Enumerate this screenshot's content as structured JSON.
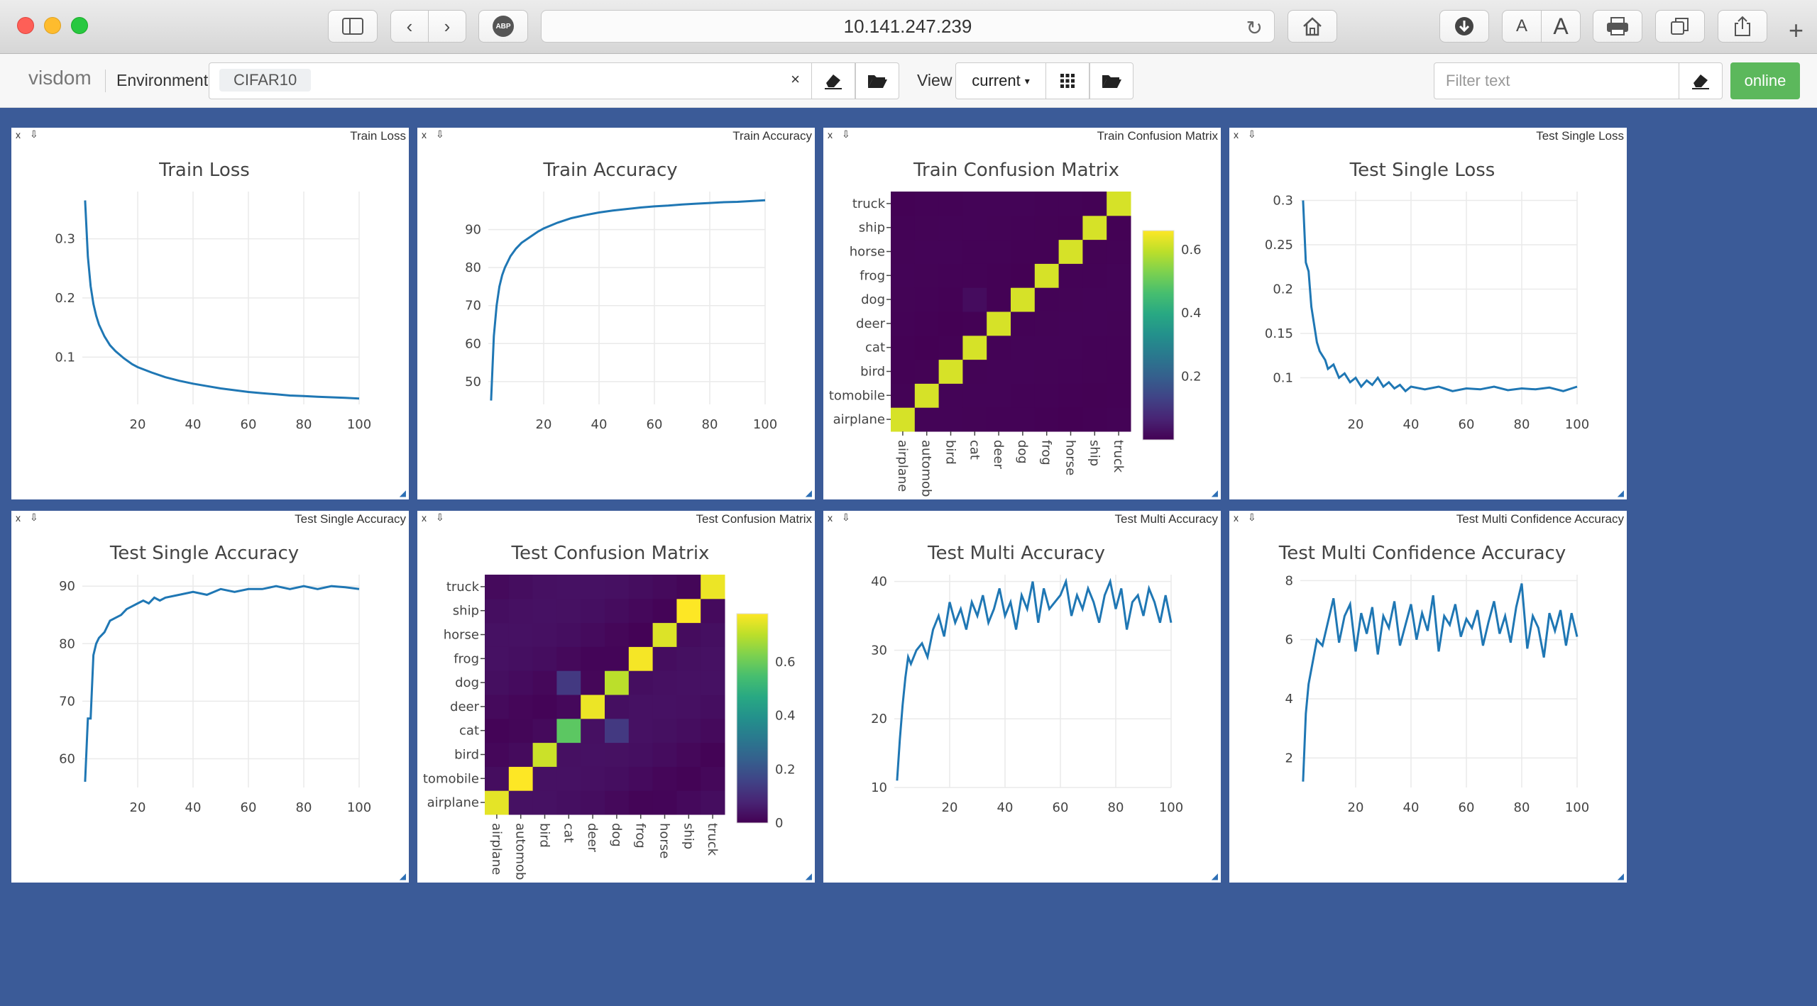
{
  "browser": {
    "url": "10.141.247.239",
    "abp_label": "ABP",
    "font_small": "A",
    "font_large": "A"
  },
  "toolbar": {
    "brand": "visdom",
    "env_label": "Environment",
    "env_value": "CIFAR10",
    "env_clear": "×",
    "view_label": "View",
    "view_value": "current",
    "filter_placeholder": "Filter text",
    "status": "online"
  },
  "colors": {
    "line": "#1f77b4",
    "background": "#3b5b98",
    "online": "#5cb85c"
  },
  "classes": [
    "airplane",
    "automobile",
    "bird",
    "cat",
    "deer",
    "dog",
    "frog",
    "horse",
    "ship",
    "truck"
  ],
  "panes": [
    {
      "id": "train-loss",
      "window": "Train Loss",
      "chart_data": {
        "type": "line",
        "title": "Train Loss",
        "x": [
          1,
          2,
          3,
          4,
          5,
          6,
          8,
          10,
          12,
          15,
          18,
          20,
          25,
          30,
          35,
          40,
          45,
          50,
          55,
          60,
          65,
          70,
          75,
          80,
          85,
          90,
          95,
          100
        ],
        "y": [
          0.365,
          0.27,
          0.22,
          0.19,
          0.17,
          0.155,
          0.135,
          0.12,
          0.11,
          0.098,
          0.088,
          0.083,
          0.074,
          0.066,
          0.06,
          0.055,
          0.051,
          0.047,
          0.044,
          0.041,
          0.039,
          0.037,
          0.035,
          0.034,
          0.033,
          0.032,
          0.031,
          0.03
        ],
        "xlim": [
          0,
          100
        ],
        "ylim": [
          0.02,
          0.38
        ],
        "xticks": [
          20,
          40,
          60,
          80,
          100
        ],
        "yticks": [
          0.1,
          0.2,
          0.3
        ]
      }
    },
    {
      "id": "train-accuracy",
      "window": "Train Accuracy",
      "chart_data": {
        "type": "line",
        "title": "Train Accuracy",
        "x": [
          1,
          2,
          3,
          4,
          5,
          6,
          8,
          10,
          12,
          15,
          18,
          20,
          25,
          30,
          35,
          40,
          45,
          50,
          55,
          60,
          65,
          70,
          75,
          80,
          85,
          90,
          95,
          100
        ],
        "y": [
          45,
          62,
          70,
          75,
          78,
          80,
          83,
          85,
          86.5,
          88,
          89.5,
          90.3,
          91.8,
          93,
          93.8,
          94.5,
          95,
          95.4,
          95.8,
          96.1,
          96.3,
          96.6,
          96.8,
          97,
          97.2,
          97.3,
          97.5,
          97.7
        ],
        "xlim": [
          0,
          100
        ],
        "ylim": [
          44,
          100
        ],
        "xticks": [
          20,
          40,
          60,
          80,
          100
        ],
        "yticks": [
          50,
          60,
          70,
          80,
          90
        ]
      }
    },
    {
      "id": "train-confusion",
      "window": "Train Confusion Matrix",
      "chart_data": {
        "type": "heatmap",
        "title": "Train Confusion Matrix",
        "xcategories": [
          "airplane",
          "automobile",
          "bird",
          "cat",
          "deer",
          "dog",
          "frog",
          "horse",
          "ship",
          "truck"
        ],
        "ycategories": [
          "airplane",
          "tomobile",
          "bird",
          "cat",
          "deer",
          "dog",
          "frog",
          "horse",
          "ship",
          "truck"
        ],
        "diagonal": 0.62,
        "offdiag": 0.003,
        "colorbar_ticks": [
          0.2,
          0.4,
          0.6
        ],
        "zmax": 0.66
      }
    },
    {
      "id": "test-single-loss",
      "window": "Test Single Loss",
      "chart_data": {
        "type": "line",
        "title": "Test Single Loss",
        "x": [
          1,
          2,
          3,
          4,
          5,
          6,
          7,
          8,
          9,
          10,
          12,
          14,
          16,
          18,
          20,
          22,
          24,
          26,
          28,
          30,
          32,
          34,
          36,
          38,
          40,
          45,
          50,
          55,
          60,
          65,
          70,
          75,
          80,
          85,
          90,
          95,
          100
        ],
        "y": [
          0.3,
          0.23,
          0.22,
          0.18,
          0.16,
          0.14,
          0.13,
          0.125,
          0.12,
          0.11,
          0.115,
          0.1,
          0.105,
          0.095,
          0.1,
          0.09,
          0.097,
          0.092,
          0.1,
          0.09,
          0.095,
          0.088,
          0.092,
          0.085,
          0.09,
          0.087,
          0.09,
          0.085,
          0.088,
          0.087,
          0.09,
          0.086,
          0.088,
          0.087,
          0.089,
          0.085,
          0.09
        ],
        "xlim": [
          0,
          100
        ],
        "ylim": [
          0.07,
          0.31
        ],
        "xticks": [
          20,
          40,
          60,
          80,
          100
        ],
        "yticks": [
          0.1,
          0.15,
          0.2,
          0.25,
          0.3
        ]
      }
    },
    {
      "id": "test-single-accuracy",
      "window": "Test Single Accuracy",
      "chart_data": {
        "type": "line",
        "title": "Test Single Accuracy",
        "x": [
          1,
          2,
          3,
          4,
          5,
          6,
          8,
          10,
          12,
          14,
          16,
          18,
          20,
          22,
          24,
          26,
          28,
          30,
          35,
          40,
          45,
          50,
          55,
          60,
          65,
          70,
          75,
          80,
          85,
          90,
          95,
          100
        ],
        "y": [
          56,
          67,
          67,
          78,
          80,
          81,
          82,
          84,
          84.5,
          85,
          86,
          86.5,
          87,
          87.5,
          87,
          88,
          87.5,
          88,
          88.5,
          89,
          88.5,
          89.5,
          89,
          89.5,
          89.5,
          90,
          89.5,
          90,
          89.5,
          90,
          89.8,
          89.5
        ],
        "xlim": [
          0,
          100
        ],
        "ylim": [
          55,
          92
        ],
        "xticks": [
          20,
          40,
          60,
          80,
          100
        ],
        "yticks": [
          60,
          70,
          80,
          90
        ]
      }
    },
    {
      "id": "test-confusion",
      "window": "Test Confusion Matrix",
      "chart_data": {
        "type": "heatmap",
        "title": "Test Confusion Matrix",
        "xcategories": [
          "airplane",
          "automobile",
          "bird",
          "cat",
          "deer",
          "dog",
          "frog",
          "horse",
          "ship",
          "truck"
        ],
        "ycategories": [
          "airplane",
          "tomobile",
          "bird",
          "cat",
          "deer",
          "dog",
          "frog",
          "horse",
          "ship",
          "truck"
        ],
        "diagonal": [
          0.75,
          0.78,
          0.72,
          0.58,
          0.76,
          0.7,
          0.77,
          0.74,
          0.78,
          0.76
        ],
        "offdiag": 0.02,
        "colorbar_ticks": [
          0,
          0.2,
          0.4,
          0.6
        ],
        "zmax": 0.78
      }
    },
    {
      "id": "test-multi-accuracy",
      "window": "Test Multi Accuracy",
      "chart_data": {
        "type": "line",
        "title": "Test Multi Accuracy",
        "x": [
          1,
          2,
          3,
          4,
          5,
          6,
          8,
          10,
          12,
          14,
          16,
          18,
          20,
          22,
          24,
          26,
          28,
          30,
          32,
          34,
          36,
          38,
          40,
          42,
          44,
          46,
          48,
          50,
          52,
          54,
          56,
          58,
          60,
          62,
          64,
          66,
          68,
          70,
          72,
          74,
          76,
          78,
          80,
          82,
          84,
          86,
          88,
          90,
          92,
          94,
          96,
          98,
          100
        ],
        "y": [
          11,
          17,
          22,
          26,
          29,
          28,
          30,
          31,
          29,
          33,
          35,
          32,
          37,
          34,
          36,
          33,
          37,
          35,
          38,
          34,
          36,
          39,
          35,
          37,
          33,
          38,
          36,
          40,
          34,
          39,
          36,
          37,
          38,
          40,
          35,
          38,
          36,
          39,
          37,
          34,
          38,
          40,
          36,
          39,
          33,
          37,
          38,
          35,
          39,
          37,
          34,
          38,
          34
        ],
        "xlim": [
          0,
          100
        ],
        "ylim": [
          10,
          41
        ],
        "xticks": [
          20,
          40,
          60,
          80,
          100
        ],
        "yticks": [
          10,
          20,
          30,
          40
        ]
      }
    },
    {
      "id": "test-multi-confidence",
      "window": "Test Multi Confidence Accuracy",
      "chart_data": {
        "type": "line",
        "title": "Test Multi Confidence Accuracy",
        "x": [
          1,
          2,
          3,
          4,
          5,
          6,
          8,
          10,
          12,
          14,
          16,
          18,
          20,
          22,
          24,
          26,
          28,
          30,
          32,
          34,
          36,
          38,
          40,
          42,
          44,
          46,
          48,
          50,
          52,
          54,
          56,
          58,
          60,
          62,
          64,
          66,
          68,
          70,
          72,
          74,
          76,
          78,
          80,
          82,
          84,
          86,
          88,
          90,
          92,
          94,
          96,
          98,
          100
        ],
        "y": [
          1.2,
          3.5,
          4.5,
          5,
          5.5,
          6,
          5.8,
          6.6,
          7.4,
          5.9,
          6.8,
          7.2,
          5.6,
          6.9,
          6.2,
          7.1,
          5.5,
          6.8,
          6.4,
          7.3,
          5.8,
          6.5,
          7.2,
          6.0,
          6.9,
          6.3,
          7.5,
          5.6,
          6.8,
          6.5,
          7.2,
          6.1,
          6.7,
          6.4,
          7.0,
          5.8,
          6.6,
          7.3,
          6.2,
          6.8,
          5.9,
          7.1,
          7.9,
          5.7,
          6.8,
          6.4,
          5.4,
          6.9,
          6.3,
          7.0,
          5.8,
          6.9,
          6.1
        ],
        "xlim": [
          0,
          100
        ],
        "ylim": [
          1,
          8.2
        ],
        "xticks": [
          20,
          40,
          60,
          80,
          100
        ],
        "yticks": [
          2,
          4,
          6,
          8
        ]
      }
    }
  ]
}
